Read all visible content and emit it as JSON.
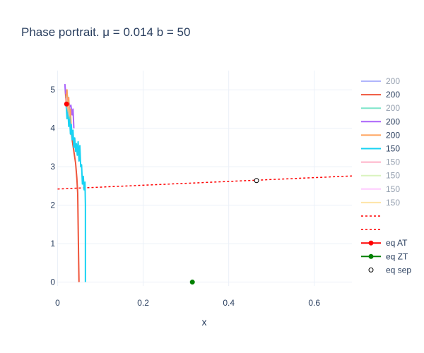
{
  "chart_data": {
    "type": "line",
    "title": "Phase portrait. μ = 0.014 b = 50",
    "xlabel": "x",
    "ylabel": "",
    "xlim": [
      -0.0025,
      0.688
    ],
    "ylim": [
      -0.1,
      5.5
    ],
    "xticks": [
      0,
      0.2,
      0.4,
      0.6
    ],
    "yticks": [
      0,
      1,
      2,
      3,
      4,
      5
    ],
    "xtick_labels": [
      "0",
      "0.2",
      "0.4",
      "0.6"
    ],
    "ytick_labels": [
      "0",
      "1",
      "2",
      "3",
      "4",
      "5"
    ],
    "grid": true,
    "legend_placement": "right",
    "series": [
      {
        "name": "200",
        "color": "#636efa",
        "opacity": 0.45,
        "x": [
          0.017,
          0.019,
          0.021,
          0.023,
          0.025,
          0.027,
          0.029,
          0.031
        ],
        "y": [
          5.1,
          4.8,
          4.95,
          4.6,
          4.75,
          4.3,
          4.5,
          4.1
        ]
      },
      {
        "name": "200",
        "color": "#ef553b",
        "opacity": 1,
        "x": [
          0.018,
          0.02,
          0.024,
          0.028,
          0.031,
          0.034,
          0.038,
          0.042,
          0.045,
          0.047,
          0.048,
          0.049,
          0.05
        ],
        "y": [
          5.0,
          4.7,
          4.55,
          4.3,
          4.0,
          3.7,
          3.4,
          3.1,
          2.7,
          2.3,
          1.5,
          0.7,
          0.0
        ]
      },
      {
        "name": "200",
        "color": "#00cc96",
        "opacity": 0.45,
        "x": [
          0.019,
          0.021,
          0.023,
          0.025,
          0.027,
          0.029
        ],
        "y": [
          5.0,
          4.7,
          4.85,
          4.5,
          4.65,
          4.2
        ]
      },
      {
        "name": "200",
        "color": "#ab63fa",
        "opacity": 1,
        "x": [
          0.017,
          0.019,
          0.021,
          0.023,
          0.025,
          0.028,
          0.031,
          0.034,
          0.036,
          0.038
        ],
        "y": [
          5.15,
          4.9,
          4.95,
          4.75,
          4.8,
          4.55,
          4.6,
          4.35,
          4.5,
          4.0
        ]
      },
      {
        "name": "200",
        "color": "#ffa15a",
        "opacity": 1,
        "x": [
          0.02,
          0.022,
          0.024,
          0.026,
          0.028,
          0.03,
          0.032
        ],
        "y": [
          4.7,
          5.0,
          4.4,
          4.8,
          4.1,
          4.5,
          3.9
        ]
      },
      {
        "name": "150",
        "color": "#19d3f3",
        "opacity": 1,
        "x": [
          0.02,
          0.022,
          0.024,
          0.026,
          0.028,
          0.03,
          0.032,
          0.034,
          0.036,
          0.038,
          0.04,
          0.042,
          0.044,
          0.046,
          0.048,
          0.05,
          0.052,
          0.054,
          0.056,
          0.058,
          0.06,
          0.062,
          0.064,
          0.065,
          0.065
        ],
        "y": [
          4.6,
          4.25,
          4.5,
          4.05,
          4.3,
          3.85,
          4.1,
          3.7,
          3.95,
          3.5,
          3.75,
          3.4,
          3.6,
          3.3,
          3.65,
          3.15,
          3.55,
          3.0,
          3.05,
          2.55,
          2.75,
          2.4,
          2.6,
          2.0,
          0.0
        ]
      },
      {
        "name": "150",
        "color": "#ff6692",
        "opacity": 0.45,
        "x": [
          0.019,
          0.021,
          0.023,
          0.025,
          0.027
        ],
        "y": [
          4.9,
          4.6,
          4.75,
          4.4,
          4.55
        ]
      },
      {
        "name": "150",
        "color": "#b6e880",
        "opacity": 0.45,
        "x": [
          0.02,
          0.022,
          0.024,
          0.026
        ],
        "y": [
          4.85,
          4.55,
          4.7,
          4.35
        ]
      },
      {
        "name": "150",
        "color": "#ff97ff",
        "opacity": 0.45,
        "x": [
          0.021,
          0.023,
          0.025,
          0.027
        ],
        "y": [
          4.8,
          4.5,
          4.65,
          4.3
        ]
      },
      {
        "name": "150",
        "color": "#fecb52",
        "opacity": 0.45,
        "x": [
          0.022,
          0.024,
          0.026,
          0.028
        ],
        "y": [
          4.75,
          4.45,
          4.6,
          4.25
        ]
      }
    ],
    "dashed_lines": [
      {
        "name": "",
        "color": "#ff0000",
        "x": [
          0,
          0.688
        ],
        "y": [
          2.42,
          2.76
        ]
      },
      {
        "name": "",
        "color": "#ff0000",
        "x": [],
        "y": []
      }
    ],
    "markers": [
      {
        "name": "eq AT",
        "color": "#ff0000",
        "filled": true,
        "x": 0.021,
        "y": 4.63
      },
      {
        "name": "eq ZT",
        "color": "#008000",
        "filled": true,
        "x": 0.315,
        "y": 0.0
      },
      {
        "name": "eq sep",
        "color": "#000000",
        "filled": false,
        "x": 0.465,
        "y": 2.64
      }
    ]
  }
}
